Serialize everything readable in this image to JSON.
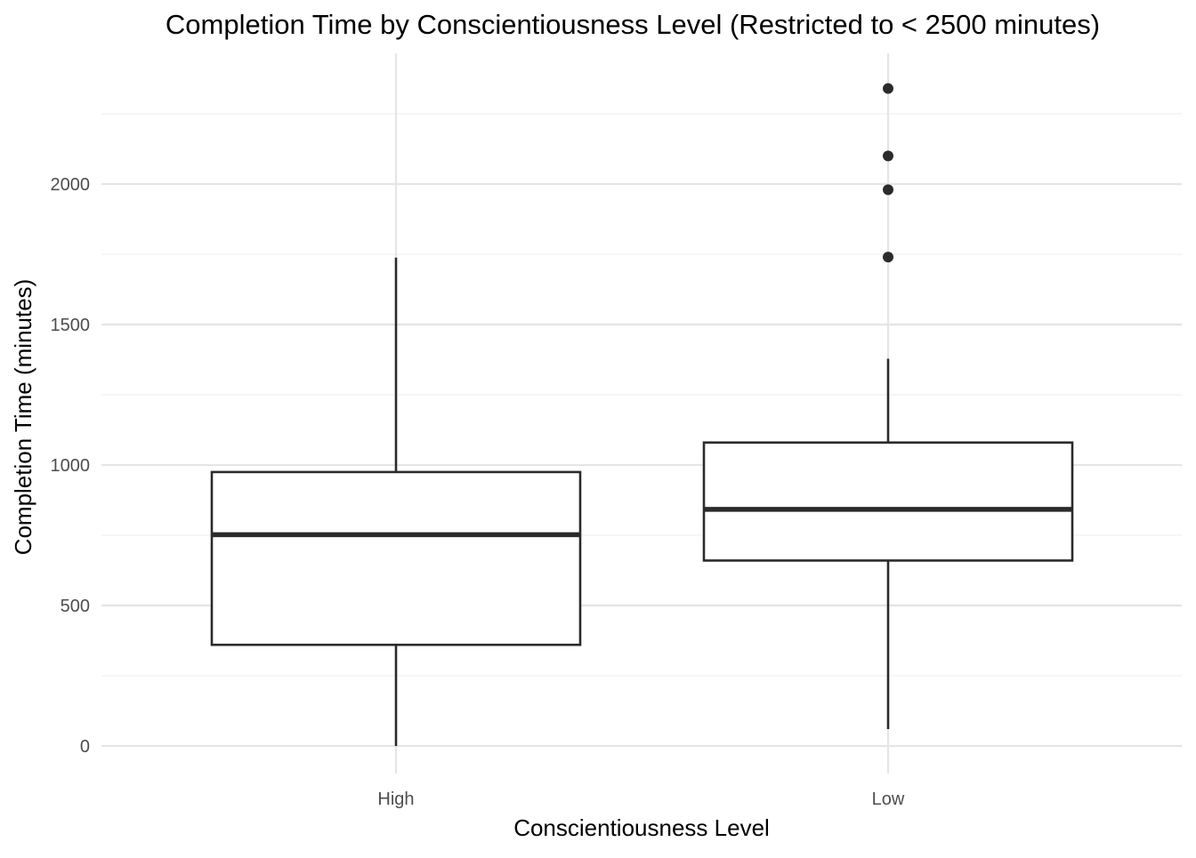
{
  "chart_data": {
    "type": "boxplot",
    "title": "Completion Time by Conscientiousness Level (Restricted to < 2500 minutes)",
    "xlabel": "Conscientiousness Level",
    "ylabel": "Completion Time (minutes)",
    "ylim": [
      -100,
      2450
    ],
    "yticks": [
      0,
      500,
      1000,
      1500,
      2000
    ],
    "ytick_labels": [
      "0",
      "500",
      "1000",
      "1500",
      "2000"
    ],
    "yminor": [
      250,
      750,
      1250,
      1750,
      2250
    ],
    "grid": true,
    "categories": [
      "High",
      "Low"
    ],
    "boxes": [
      {
        "category": "High",
        "whisker_low": 0,
        "q1": 360,
        "median": 752,
        "q3": 975,
        "whisker_high": 1738,
        "outliers": []
      },
      {
        "category": "Low",
        "whisker_low": 60,
        "q1": 660,
        "median": 842,
        "q3": 1080,
        "whisker_high": 1378,
        "outliers": [
          1740,
          1980,
          2100,
          2340
        ]
      }
    ],
    "colors": {
      "box_stroke": "#2b2b2b",
      "box_fill": "#ffffff",
      "grid_major": "#e5e5e5",
      "grid_minor": "#f0f0f0"
    }
  }
}
